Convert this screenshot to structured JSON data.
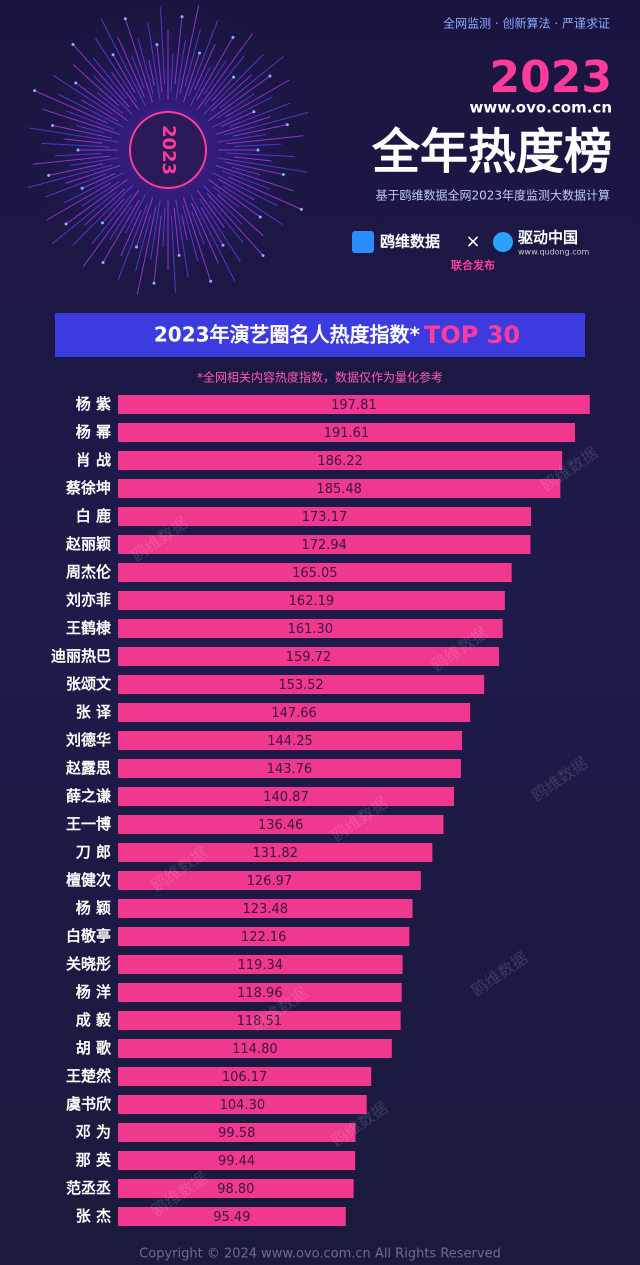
{
  "header": {
    "slogan": "全网监测 · 创新算法 · 严谨求证",
    "year": "2023",
    "site": "www.ovo.com.cn",
    "title": "全年热度榜",
    "subtitle": "基于鸥维数据全网2023年度监测大数据计算",
    "badge": "2023",
    "partner1": "鸥维数据",
    "partner2": "驱动中国",
    "partner2_site": "www.qudong.com",
    "joint": "联合发布"
  },
  "chart_data": {
    "type": "barh",
    "title": "2023年演艺圈名人热度指数*",
    "title_highlight": "TOP 30",
    "note": "*全网相关内容热度指数，数据仅作为量化参考",
    "color": "#f0388e",
    "categories": [
      "杨 紫",
      "杨 幂",
      "肖 战",
      "蔡徐坤",
      "白 鹿",
      "赵丽颖",
      "周杰伦",
      "刘亦菲",
      "王鹤棣",
      "迪丽热巴",
      "张颂文",
      "张 译",
      "刘德华",
      "赵露思",
      "薛之谦",
      "王一博",
      "刀 郎",
      "檀健次",
      "杨 颖",
      "白敬亭",
      "关晓彤",
      "杨 洋",
      "成 毅",
      "胡 歌",
      "王楚然",
      "虞书欣",
      "邓 为",
      "那 英",
      "范丞丞",
      "张 杰"
    ],
    "values": [
      197.81,
      191.61,
      186.22,
      185.48,
      173.17,
      172.94,
      165.05,
      162.19,
      161.3,
      159.72,
      153.52,
      147.66,
      144.25,
      143.76,
      140.87,
      136.46,
      131.82,
      126.97,
      123.48,
      122.16,
      119.34,
      118.96,
      118.51,
      114.8,
      106.17,
      104.3,
      99.58,
      99.44,
      98.8,
      95.49
    ],
    "value_labels": [
      "197.81",
      "191.61",
      "186.22",
      "185.48",
      "173.17",
      "172.94",
      "165.05",
      "162.19",
      "161.30",
      "159.72",
      "153.52",
      "147.66",
      "144.25",
      "143.76",
      "140.87",
      "136.46",
      "131.82",
      "126.97",
      "123.48",
      "122.16",
      "119.34",
      "118.96",
      "118.51",
      "114.80",
      "106.17",
      "104.30",
      "99.58",
      "99.44",
      "98.80",
      "95.49"
    ]
  },
  "watermark": "鸥维数据",
  "footer": "Copyright © 2024  www.ovo.com.cn All Rights Reserved"
}
